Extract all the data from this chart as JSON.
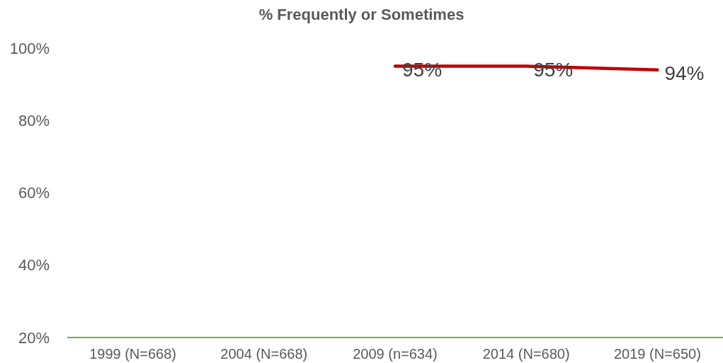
{
  "chart_data": {
    "type": "line",
    "title": "% Frequently or Sometimes",
    "categories": [
      "1999 (N=668)",
      "2004 (N=668)",
      "2009 (n=634)",
      "2014 (N=680)",
      "2019 (N=650)"
    ],
    "series": [
      {
        "color": "#c00000",
        "values": [
          null,
          null,
          95,
          95,
          94
        ],
        "value_labels": [
          null,
          null,
          "95%",
          "95%",
          "94%"
        ]
      }
    ],
    "ylim": [
      20,
      100
    ],
    "yticks": [
      {
        "value": 20,
        "label": "20%"
      },
      {
        "value": 40,
        "label": "40%"
      },
      {
        "value": 60,
        "label": "60%"
      },
      {
        "value": 80,
        "label": "80%"
      },
      {
        "value": 100,
        "label": "100%"
      }
    ],
    "grid": false,
    "marker": "none",
    "line_style": "solid"
  }
}
